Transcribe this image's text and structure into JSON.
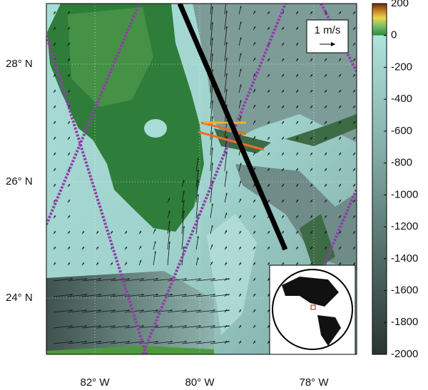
{
  "lat_labels": [
    "28° N",
    "26° N",
    "24° N"
  ],
  "lon_labels": [
    "82° W",
    "80° W",
    "78° W"
  ],
  "scale_label": "1 m/s",
  "colorbar": {
    "lim": [
      -2000,
      200
    ],
    "ticks": [
      200,
      0,
      -200,
      -400,
      -600,
      -800,
      -1000,
      -1200,
      -1400,
      -1600,
      -1800,
      -2000
    ]
  }
}
